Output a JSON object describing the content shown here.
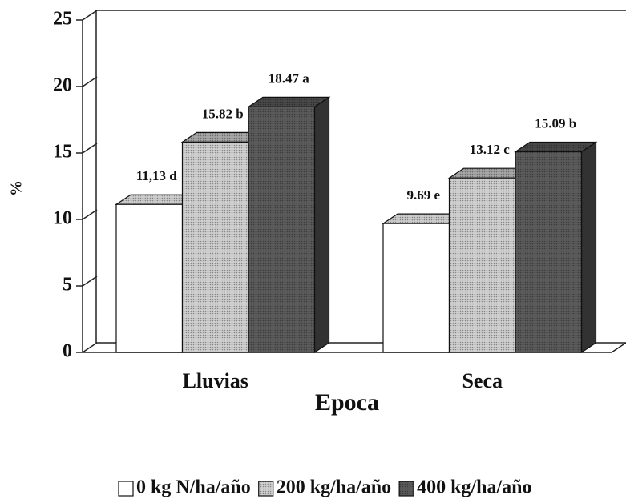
{
  "chart_data": {
    "type": "bar3d",
    "ylabel": "%",
    "xlabel": "Epoca",
    "categories": [
      "Lluvias",
      "Seca"
    ],
    "series": [
      {
        "name": "0 kg N/ha/año",
        "color": "#ffffff",
        "values": [
          11.13,
          9.69
        ],
        "value_labels": [
          "11,13 d",
          "9.69 e"
        ]
      },
      {
        "name": "200 kg/ha/año",
        "color": "#cfcfcf",
        "values": [
          15.82,
          13.12
        ],
        "value_labels": [
          "15.82 b",
          "13.12 c"
        ]
      },
      {
        "name": "400 kg/ha/año",
        "color": "#5a5a5a",
        "values": [
          18.47,
          15.09
        ],
        "value_labels": [
          "18.47 a",
          "15.09 b"
        ]
      }
    ],
    "ylim": [
      0,
      25
    ],
    "yticks": [
      0,
      5,
      10,
      15,
      20,
      25
    ],
    "legend": "bottom"
  }
}
